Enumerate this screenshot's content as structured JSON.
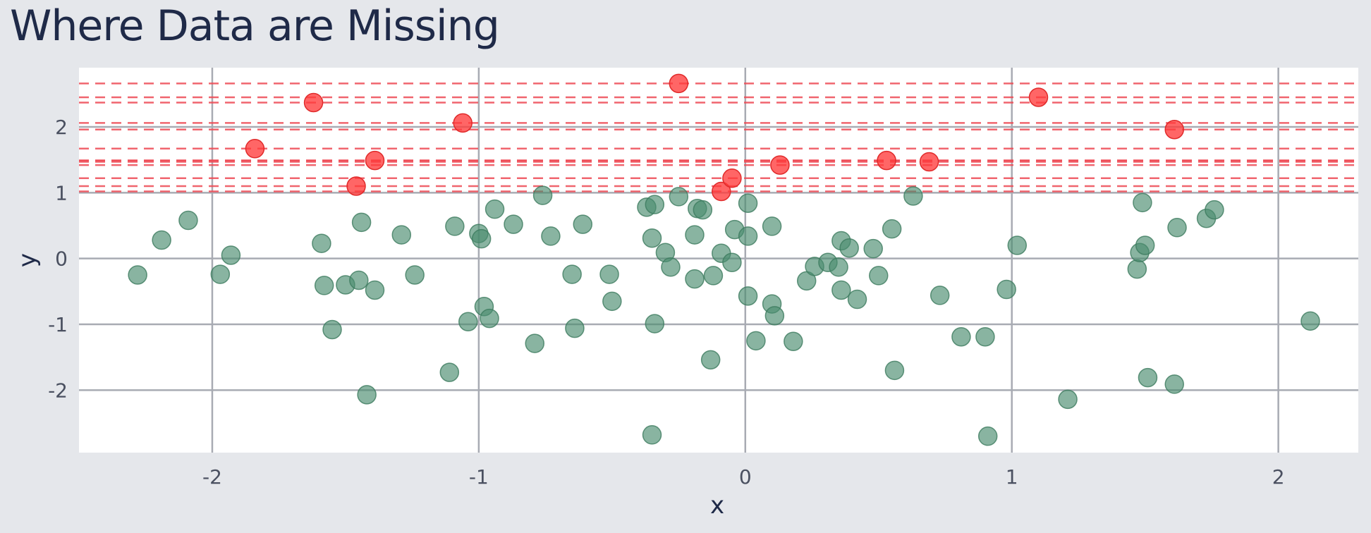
{
  "chart_data": {
    "type": "scatter",
    "title": "Where Data are Missing",
    "xlabel": "x",
    "ylabel": "y",
    "xlim": [
      -2.5,
      2.3
    ],
    "ylim": [
      -2.95,
      2.9
    ],
    "xticks": [
      -2,
      -1,
      0,
      1,
      2
    ],
    "yticks": [
      -2,
      -1,
      0,
      1,
      2
    ],
    "grid": true,
    "legend": "none",
    "colors": {
      "observed": "#4a8c6e",
      "missing": "#ff3b3b",
      "missing_line": "#ee4b55",
      "grid": "#a8abb3",
      "plot_bg": "#ffffff",
      "page_bg": "#e5e7eb"
    },
    "series": [
      {
        "points": [
          [
            -2.28,
            -0.25
          ],
          [
            -2.19,
            0.28
          ],
          [
            -2.09,
            0.58
          ],
          [
            -1.97,
            -0.24
          ],
          [
            -1.93,
            0.05
          ],
          [
            -1.59,
            0.23
          ],
          [
            -1.58,
            -0.41
          ],
          [
            -1.55,
            -1.08
          ],
          [
            -1.5,
            -0.4
          ],
          [
            -1.45,
            -0.33
          ],
          [
            -1.44,
            0.55
          ],
          [
            -1.42,
            -2.07
          ],
          [
            -1.39,
            -0.48
          ],
          [
            -1.29,
            0.36
          ],
          [
            -1.24,
            -0.25
          ],
          [
            -1.11,
            -1.73
          ],
          [
            -1.09,
            0.49
          ],
          [
            -1.04,
            -0.96
          ],
          [
            -1.0,
            0.38
          ],
          [
            -0.99,
            0.3
          ],
          [
            -0.98,
            -0.73
          ],
          [
            -0.96,
            -0.91
          ],
          [
            -0.94,
            0.75
          ],
          [
            -0.87,
            0.52
          ],
          [
            -0.79,
            -1.29
          ],
          [
            -0.76,
            0.96
          ],
          [
            -0.73,
            0.34
          ],
          [
            -0.65,
            -0.24
          ],
          [
            -0.64,
            -1.06
          ],
          [
            -0.61,
            0.52
          ],
          [
            -0.51,
            -0.24
          ],
          [
            -0.5,
            -0.65
          ],
          [
            -0.37,
            0.78
          ],
          [
            -0.35,
            0.31
          ],
          [
            -0.35,
            -2.68
          ],
          [
            -0.34,
            0.82
          ],
          [
            -0.34,
            -0.99
          ],
          [
            -0.3,
            0.09
          ],
          [
            -0.28,
            -0.13
          ],
          [
            -0.25,
            0.94
          ],
          [
            -0.19,
            -0.31
          ],
          [
            -0.19,
            0.36
          ],
          [
            -0.18,
            0.76
          ],
          [
            -0.16,
            0.74
          ],
          [
            -0.13,
            -1.54
          ],
          [
            -0.12,
            -0.26
          ],
          [
            -0.09,
            0.08
          ],
          [
            -0.05,
            -0.06
          ],
          [
            -0.04,
            0.44
          ],
          [
            0.01,
            0.84
          ],
          [
            0.01,
            0.34
          ],
          [
            0.01,
            -0.57
          ],
          [
            0.04,
            -1.25
          ],
          [
            0.1,
            0.49
          ],
          [
            0.1,
            -0.69
          ],
          [
            0.11,
            -0.87
          ],
          [
            0.18,
            -1.26
          ],
          [
            0.23,
            -0.34
          ],
          [
            0.26,
            -0.12
          ],
          [
            0.31,
            -0.06
          ],
          [
            0.35,
            -0.13
          ],
          [
            0.36,
            0.27
          ],
          [
            0.36,
            -0.48
          ],
          [
            0.39,
            0.16
          ],
          [
            0.42,
            -0.62
          ],
          [
            0.48,
            0.15
          ],
          [
            0.5,
            -0.26
          ],
          [
            0.55,
            0.45
          ],
          [
            0.56,
            -1.7
          ],
          [
            0.63,
            0.95
          ],
          [
            0.73,
            -0.56
          ],
          [
            0.81,
            -1.19
          ],
          [
            0.9,
            -1.19
          ],
          [
            0.91,
            -2.7
          ],
          [
            0.98,
            -0.47
          ],
          [
            1.02,
            0.2
          ],
          [
            1.21,
            -2.14
          ],
          [
            1.47,
            -0.16
          ],
          [
            1.48,
            0.09
          ],
          [
            1.49,
            0.85
          ],
          [
            1.5,
            0.2
          ],
          [
            1.51,
            -1.81
          ],
          [
            1.61,
            -1.91
          ],
          [
            1.62,
            0.47
          ],
          [
            1.73,
            0.61
          ],
          [
            1.76,
            0.74
          ],
          [
            2.12,
            -0.95
          ]
        ]
      },
      {
        "points": [
          [
            -1.84,
            1.67
          ],
          [
            -1.62,
            2.37
          ],
          [
            -1.46,
            1.1
          ],
          [
            -1.39,
            1.49
          ],
          [
            -1.06,
            2.06
          ],
          [
            -0.25,
            2.66
          ],
          [
            -0.09,
            1.02
          ],
          [
            -0.05,
            1.22
          ],
          [
            0.13,
            1.42
          ],
          [
            0.53,
            1.49
          ],
          [
            0.69,
            1.47
          ],
          [
            1.1,
            2.45
          ],
          [
            1.61,
            1.96
          ]
        ]
      }
    ]
  }
}
